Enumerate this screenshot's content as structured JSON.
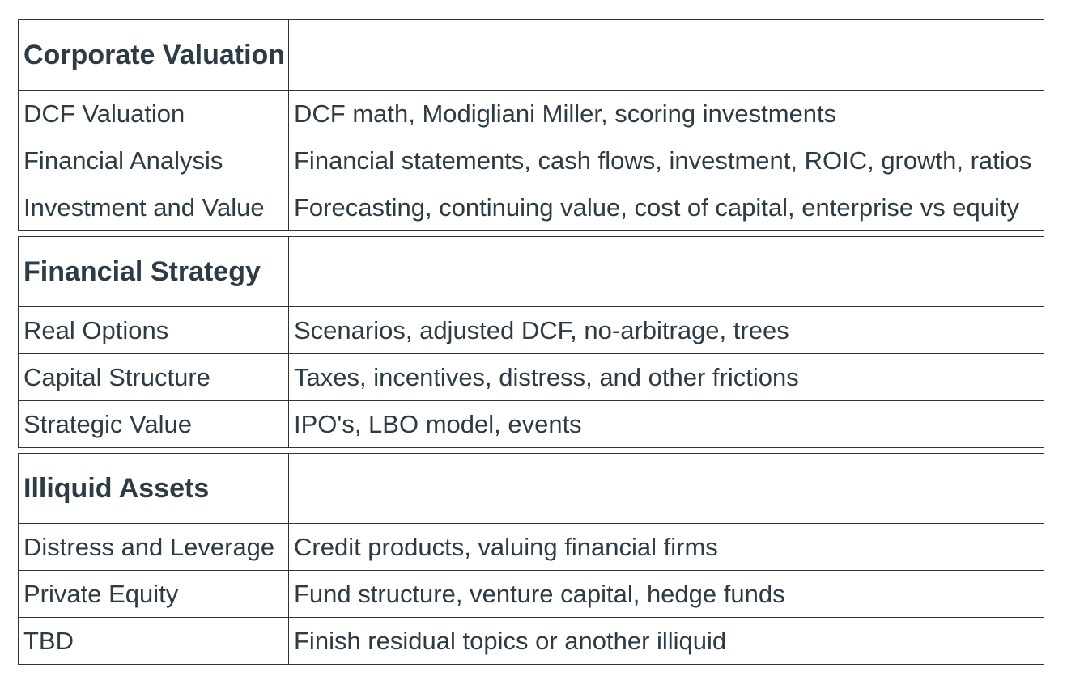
{
  "sections": [
    {
      "title": "Corporate Valuation",
      "rows": [
        {
          "topic": "DCF Valuation",
          "description": "DCF math, Modigliani Miller, scoring investments"
        },
        {
          "topic": "Financial Analysis",
          "description": "Financial statements, cash flows, investment, ROIC, growth, ratios"
        },
        {
          "topic": "Investment and Value",
          "description": "Forecasting, continuing value, cost of capital, enterprise vs equity"
        }
      ]
    },
    {
      "title": "Financial Strategy",
      "rows": [
        {
          "topic": "Real Options",
          "description": "Scenarios, adjusted DCF, no-arbitrage, trees"
        },
        {
          "topic": "Capital Structure",
          "description": "Taxes, incentives, distress, and other frictions"
        },
        {
          "topic": "Strategic Value",
          "description": "IPO's, LBO model, events"
        }
      ]
    },
    {
      "title": "Illiquid Assets",
      "rows": [
        {
          "topic": "Distress and Leverage",
          "description": "Credit products, valuing financial firms"
        },
        {
          "topic": "Private Equity",
          "description": "Fund structure, venture capital, hedge funds"
        },
        {
          "topic": "TBD",
          "description": "Finish residual topics or another illiquid"
        }
      ]
    }
  ]
}
